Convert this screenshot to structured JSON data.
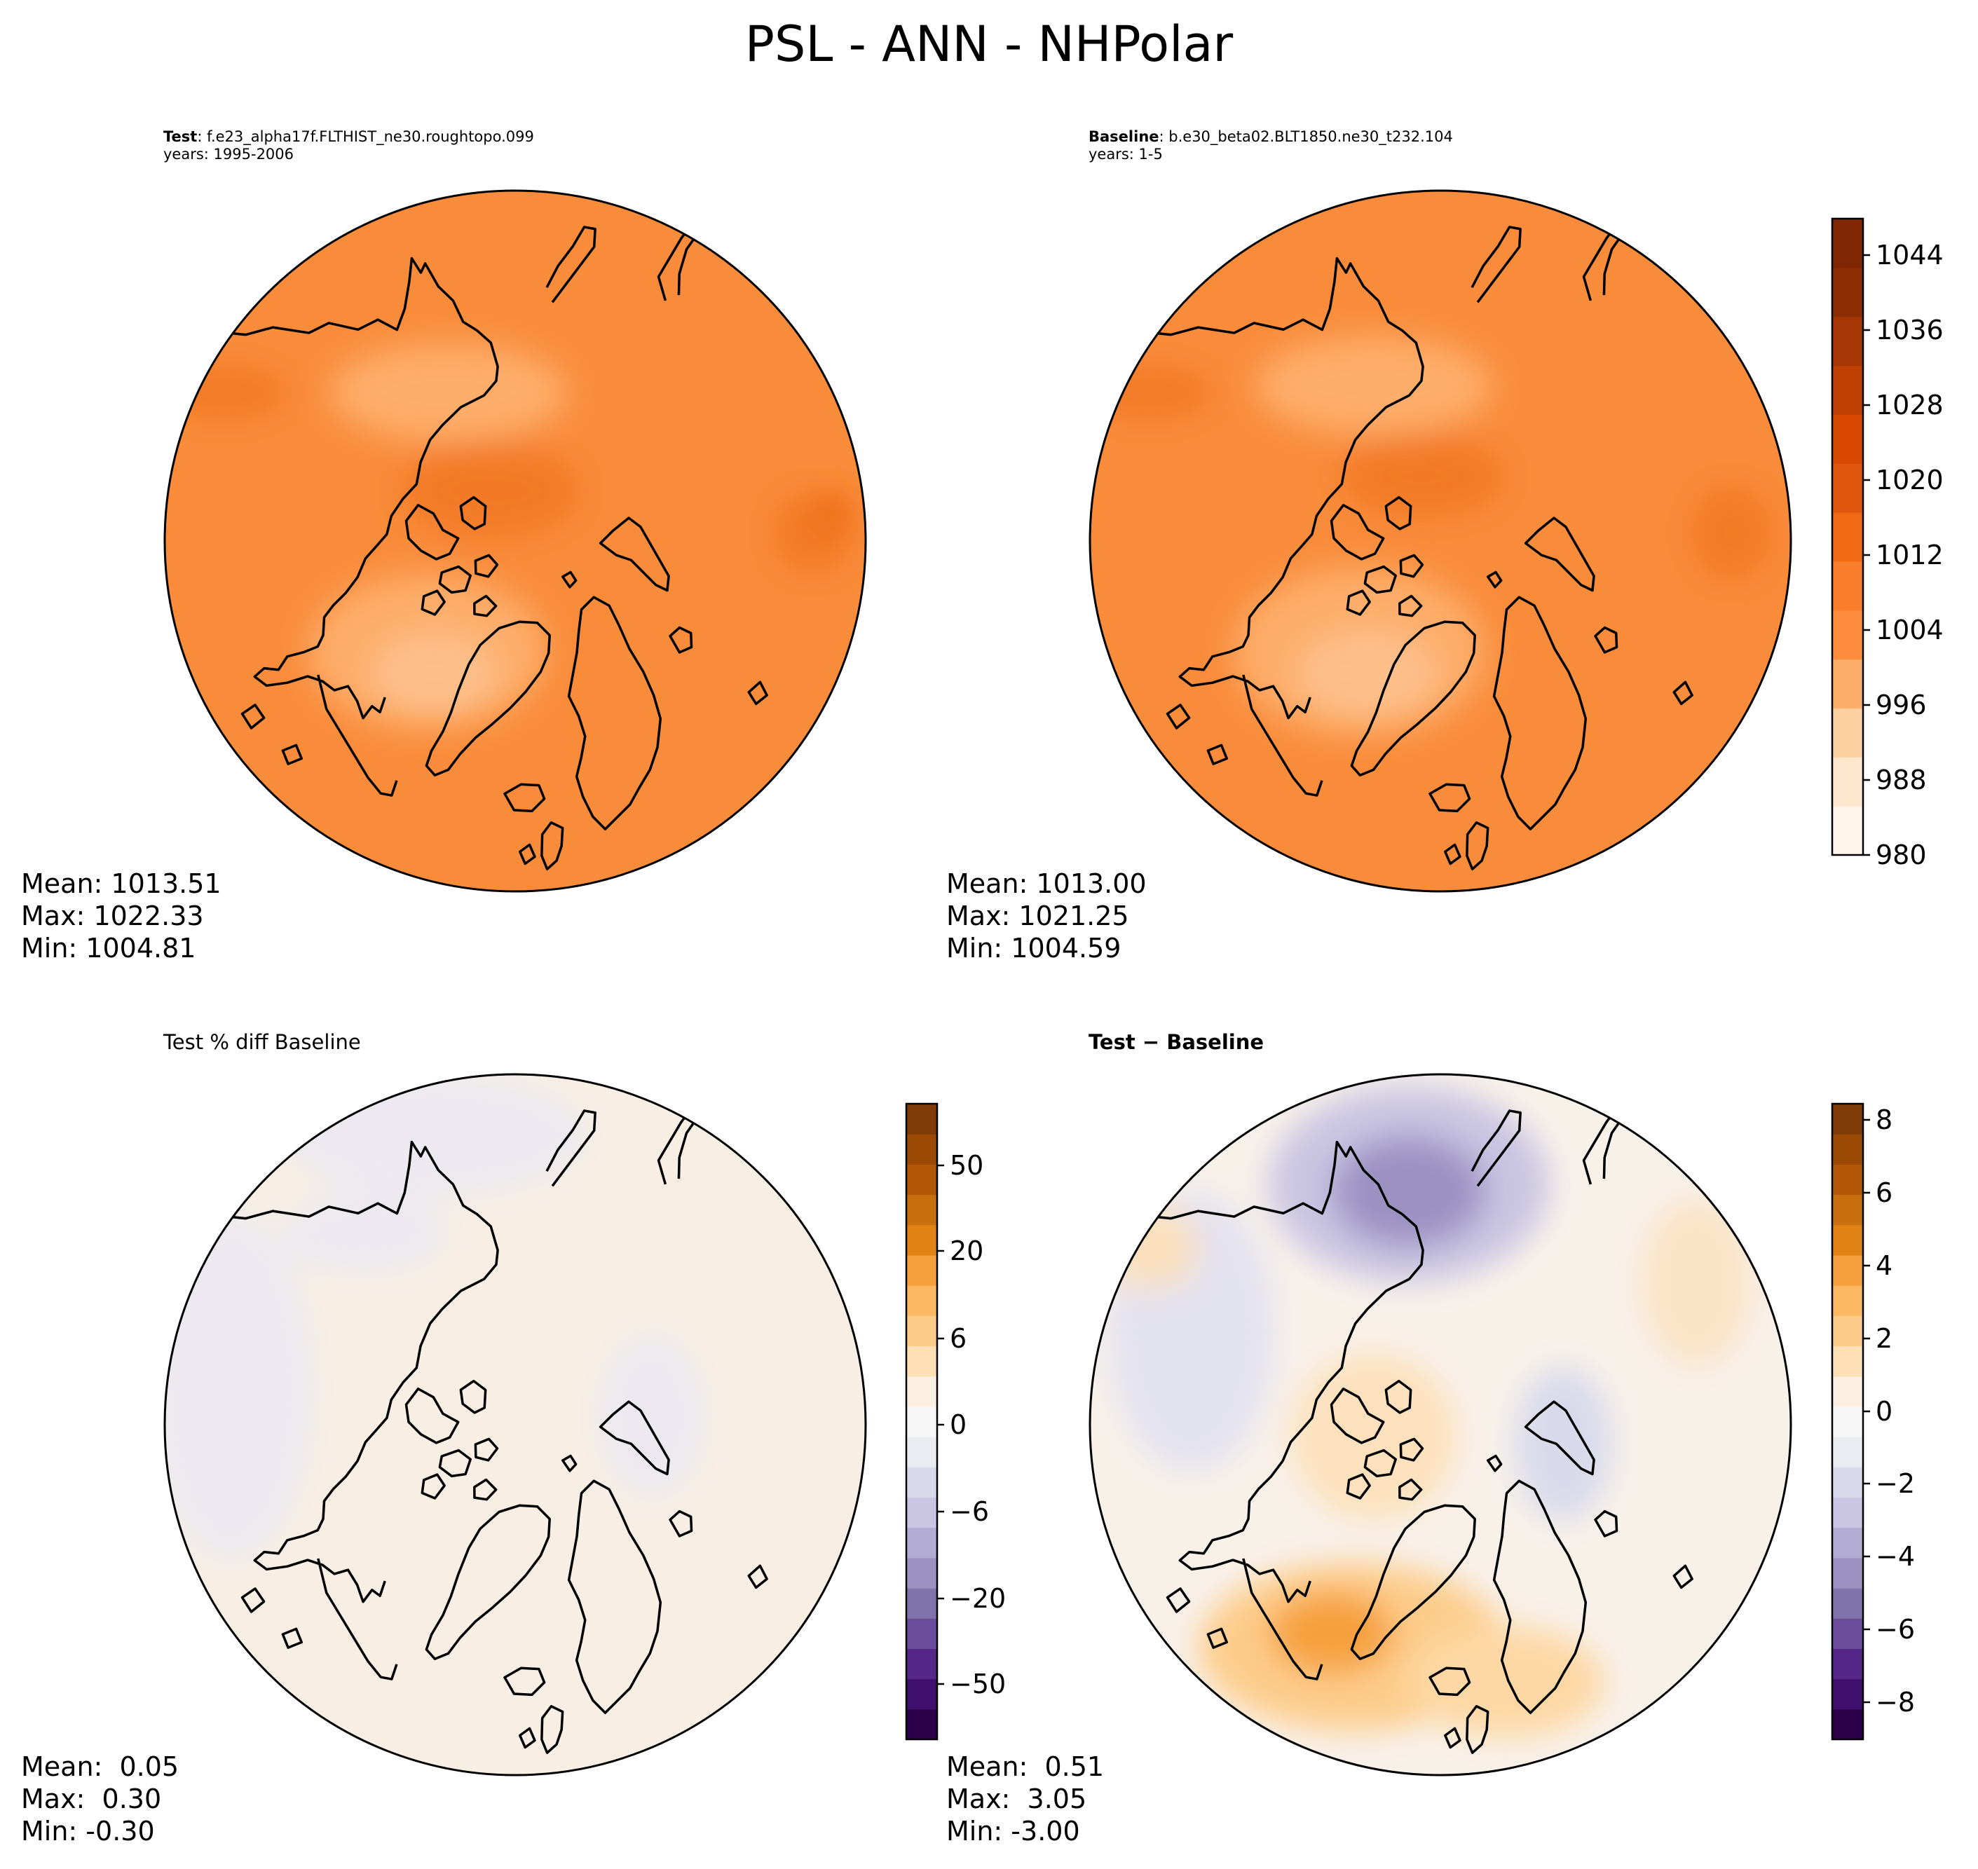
{
  "figure": {
    "title": "PSL - ANN - NHPolar"
  },
  "panels": {
    "test": {
      "label": "Test",
      "case": ": f.e23_alpha17f.FLTHIST_ne30.roughtopo.099",
      "years": "years: 1995-2006",
      "stats": [
        "Mean: 1013.51",
        "Max: 1022.33",
        "Min: 1004.81"
      ]
    },
    "baseline": {
      "label": "Baseline",
      "case": ": b.e30_beta02.BLT1850.ne30_t232.104",
      "years": "years: 1-5",
      "stats": [
        "Mean: 1013.00",
        "Max: 1021.25",
        "Min: 1004.59"
      ]
    },
    "pctdiff": {
      "title": "Test % diff Baseline",
      "stats": [
        "Mean:  0.05",
        "Max:  0.30",
        "Min: -0.30"
      ]
    },
    "diff": {
      "title": "Test − Baseline",
      "stats": [
        "Mean:  0.51",
        "Max:  3.05",
        "Min: -3.00"
      ]
    }
  },
  "colorbars": {
    "abs": {
      "ticks": [
        "980",
        "988",
        "996",
        "1004",
        "1012",
        "1020",
        "1028",
        "1036",
        "1044"
      ],
      "colors": [
        "#fff5eb",
        "#fee6ce",
        "#fdd0a2",
        "#fdae6b",
        "#fd8d3c",
        "#f97d2b",
        "#f16913",
        "#e0560d",
        "#d94801",
        "#c03f03",
        "#a63603",
        "#8c2d04",
        "#7f2704"
      ]
    },
    "pct": {
      "ticks": [
        "−50",
        "−20",
        "−6",
        "0",
        "6",
        "20",
        "50"
      ],
      "colors": [
        "#2d004b",
        "#3f0f6e",
        "#542788",
        "#6b4c9a",
        "#8073ac",
        "#9c92c2",
        "#b2abd2",
        "#c9c5e2",
        "#d8daeb",
        "#ebebf2",
        "#f7f7f7",
        "#fbefe2",
        "#fee0b6",
        "#fdcc8a",
        "#fdb863",
        "#f6a03d",
        "#e08214",
        "#c8700d",
        "#b35806",
        "#9b4a06",
        "#7f3b08"
      ]
    },
    "diff": {
      "ticks": [
        "−8",
        "−6",
        "−4",
        "−2",
        "0",
        "2",
        "4",
        "6",
        "8"
      ],
      "colors": [
        "#2d004b",
        "#3f0f6e",
        "#542788",
        "#6b4c9a",
        "#8073ac",
        "#9c92c2",
        "#b2abd2",
        "#c9c5e2",
        "#d8daeb",
        "#ebebf2",
        "#f7f7f7",
        "#fbefe2",
        "#fee0b6",
        "#fdcc8a",
        "#fdb863",
        "#f6a03d",
        "#e08214",
        "#c8700d",
        "#b35806",
        "#9b4a06",
        "#7f3b08"
      ]
    }
  }
}
